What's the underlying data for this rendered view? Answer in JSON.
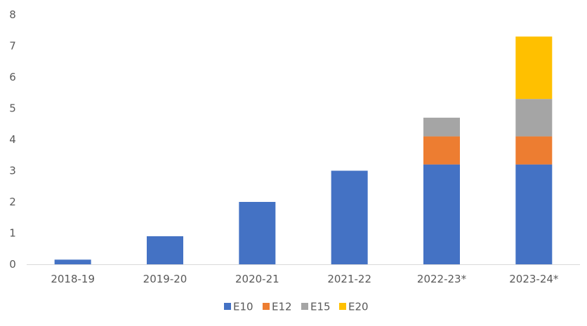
{
  "chart_data": {
    "type": "bar",
    "stacked": true,
    "categories": [
      "2018-19",
      "2019-20",
      "2020-21",
      "2021-22",
      "2022-23*",
      "2023-24*"
    ],
    "series": [
      {
        "name": "E10",
        "color": "#4472C4",
        "values": [
          0.15,
          0.9,
          2.0,
          3.0,
          3.2,
          3.2
        ]
      },
      {
        "name": "E12",
        "color": "#ED7D31",
        "values": [
          0,
          0,
          0,
          0,
          0.9,
          0.9
        ]
      },
      {
        "name": "E15",
        "color": "#A5A5A5",
        "values": [
          0,
          0,
          0,
          0,
          0.6,
          1.2
        ]
      },
      {
        "name": "E20",
        "color": "#FFC000",
        "values": [
          0,
          0,
          0,
          0,
          0,
          2.0
        ]
      }
    ],
    "yticks": [
      "0",
      "1",
      "2",
      "3",
      "4",
      "5",
      "6",
      "7",
      "8"
    ],
    "ylim": [
      0,
      8
    ],
    "grid": false,
    "legend_position": "bottom"
  }
}
